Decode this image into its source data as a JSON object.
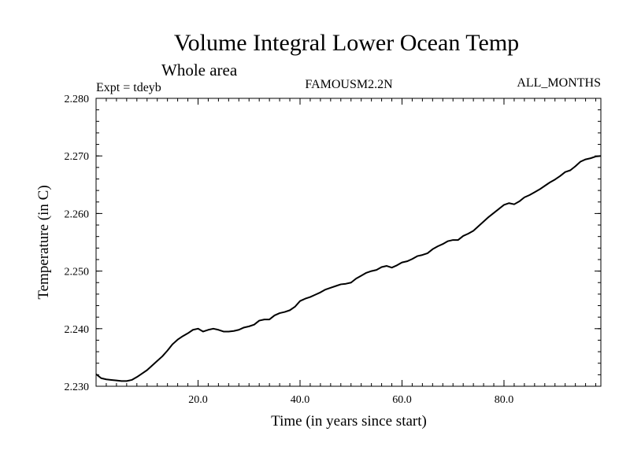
{
  "chart_data": {
    "type": "line",
    "title": "Volume Integral Lower Ocean Temp",
    "subtitle": "Whole area",
    "annotations": {
      "left": "Expt = tdeyb",
      "center": "FAMOUSM2.2N",
      "right": "ALL_MONTHS"
    },
    "xlabel": "Time (in years since start)",
    "ylabel": "Temperature (in C)",
    "xlim": [
      0,
      99
    ],
    "ylim": [
      2.23,
      2.28
    ],
    "x_ticks": [
      20,
      40,
      60,
      80
    ],
    "x_tick_labels": [
      "20.0",
      "40.0",
      "60.0",
      "80.0"
    ],
    "y_ticks": [
      2.23,
      2.24,
      2.25,
      2.26,
      2.27,
      2.28
    ],
    "y_tick_labels": [
      "2.230",
      "2.240",
      "2.250",
      "2.260",
      "2.270",
      "2.280"
    ],
    "grid": false,
    "series": [
      {
        "color": "#000000",
        "x": [
          0,
          1,
          2,
          3,
          4,
          5,
          6,
          7,
          8,
          9,
          10,
          11,
          12,
          13,
          14,
          15,
          16,
          17,
          18,
          19,
          20,
          21,
          22,
          23,
          24,
          25,
          26,
          27,
          28,
          29,
          30,
          31,
          32,
          33,
          34,
          35,
          36,
          37,
          38,
          39,
          40,
          41,
          42,
          43,
          44,
          45,
          46,
          47,
          48,
          49,
          50,
          51,
          52,
          53,
          54,
          55,
          56,
          57,
          58,
          59,
          60,
          61,
          62,
          63,
          64,
          65,
          66,
          67,
          68,
          69,
          70,
          71,
          72,
          73,
          74,
          75,
          76,
          77,
          78,
          79,
          80,
          81,
          82,
          83,
          84,
          85,
          86,
          87,
          88,
          89,
          90,
          91,
          92,
          93,
          94,
          95,
          96,
          97,
          98,
          99
        ],
        "y": [
          2.2321,
          2.2314,
          2.2312,
          2.2311,
          2.231,
          2.2309,
          2.2309,
          2.2311,
          2.2316,
          2.2322,
          2.2328,
          2.2336,
          2.2344,
          2.2352,
          2.2362,
          2.2373,
          2.2381,
          2.2387,
          2.2392,
          2.2398,
          2.24,
          2.2395,
          2.2398,
          2.24,
          2.2398,
          2.2395,
          2.2395,
          2.2396,
          2.2398,
          2.2402,
          2.2404,
          2.2407,
          2.2414,
          2.2416,
          2.2416,
          2.2423,
          2.2427,
          2.2429,
          2.2432,
          2.2438,
          2.2448,
          2.2452,
          2.2455,
          2.2459,
          2.2463,
          2.2468,
          2.2471,
          2.2474,
          2.2477,
          2.2478,
          2.248,
          2.2487,
          2.2492,
          2.2497,
          2.25,
          2.2502,
          2.2507,
          2.2509,
          2.2506,
          2.251,
          2.2515,
          2.2517,
          2.2521,
          2.2526,
          2.2528,
          2.2531,
          2.2538,
          2.2543,
          2.2547,
          2.2552,
          2.2554,
          2.2554,
          2.2561,
          2.2565,
          2.257,
          2.2578,
          2.2586,
          2.2594,
          2.2601,
          2.2608,
          2.2615,
          2.2618,
          2.2616,
          2.2621,
          2.2628,
          2.2632,
          2.2637,
          2.2642,
          2.2648,
          2.2654,
          2.2659,
          2.2665,
          2.2672,
          2.2675,
          2.2682,
          2.269,
          2.2694,
          2.2696,
          2.2699,
          2.27
        ]
      }
    ]
  }
}
